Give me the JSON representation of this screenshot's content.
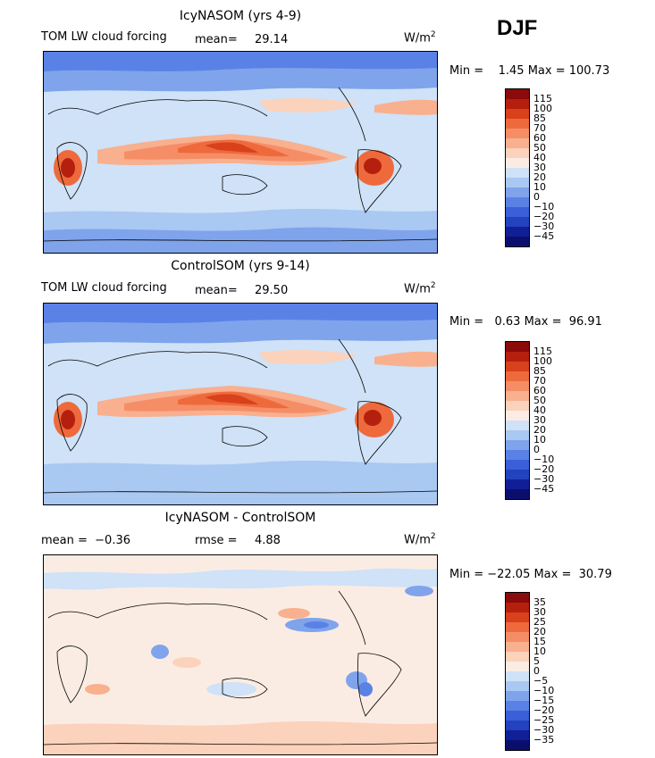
{
  "season": "DJF",
  "panels": [
    {
      "title": "IcyNASOM (yrs 4-9)",
      "left_label": "TOM LW cloud forcing",
      "stat_label": "mean=",
      "stat_value": "29.14",
      "units": "W/m",
      "units_exp": "2",
      "minmax": "Min =    1.45 Max = 100.73",
      "colorbar": {
        "levels": [
          "115",
          "100",
          "85",
          "70",
          "60",
          "50",
          "40",
          "30",
          "20",
          "10",
          "0",
          "−10",
          "−20",
          "−30",
          "−45"
        ],
        "colors": [
          "#8b0a0a",
          "#b5200e",
          "#d9401c",
          "#ee6a3c",
          "#f58e66",
          "#f8b08f",
          "#fbd2bb",
          "#fbece3",
          "#cfe2f7",
          "#a9c8f2",
          "#7fa4ec",
          "#5a82e6",
          "#3a5fd8",
          "#2342bd",
          "#111f96",
          "#0a0f6e"
        ],
        "variable": "lw_cloud_forcing",
        "units": "W/m2"
      }
    },
    {
      "title": "ControlSOM (yrs 9-14)",
      "left_label": "TOM LW cloud forcing",
      "stat_label": "mean=",
      "stat_value": "29.50",
      "units": "W/m",
      "units_exp": "2",
      "minmax": "Min =   0.63 Max =  96.91",
      "colorbar": {
        "levels": [
          "115",
          "100",
          "85",
          "70",
          "60",
          "50",
          "40",
          "30",
          "20",
          "10",
          "0",
          "−10",
          "−20",
          "−30",
          "−45"
        ],
        "colors": [
          "#8b0a0a",
          "#b5200e",
          "#d9401c",
          "#ee6a3c",
          "#f58e66",
          "#f8b08f",
          "#fbd2bb",
          "#fbece3",
          "#cfe2f7",
          "#a9c8f2",
          "#7fa4ec",
          "#5a82e6",
          "#3a5fd8",
          "#2342bd",
          "#111f96",
          "#0a0f6e"
        ],
        "variable": "lw_cloud_forcing",
        "units": "W/m2"
      }
    },
    {
      "title": "IcyNASOM - ControlSOM",
      "left_label": "mean =  −0.36",
      "stat_label": "rmse =",
      "stat_value": "4.88",
      "units": "W/m",
      "units_exp": "2",
      "minmax": "Min = −22.05 Max =  30.79",
      "colorbar": {
        "levels": [
          "35",
          "30",
          "25",
          "20",
          "15",
          "10",
          "5",
          "0",
          "−5",
          "−10",
          "−15",
          "−20",
          "−25",
          "−30",
          "−35"
        ],
        "colors": [
          "#8b0a0a",
          "#b5200e",
          "#d9401c",
          "#ee6a3c",
          "#f58e66",
          "#f8b08f",
          "#fbd2bb",
          "#fbece3",
          "#cfe2f7",
          "#a9c8f2",
          "#7fa4ec",
          "#5a82e6",
          "#3a5fd8",
          "#2342bd",
          "#111f96",
          "#0a0f6e"
        ],
        "variable": "lw_cloud_forcing_difference",
        "units": "W/m2"
      }
    }
  ]
}
